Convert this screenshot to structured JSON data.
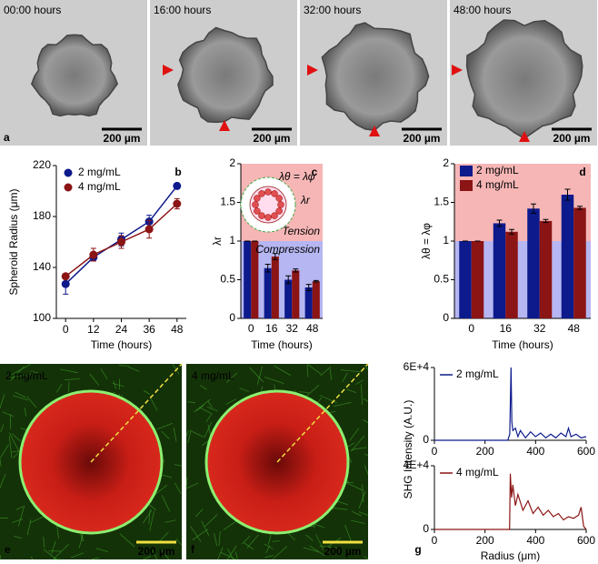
{
  "images": {
    "timelapse": [
      {
        "time": "00:00 hours",
        "scale": "200 µm"
      },
      {
        "time": "16:00 hours",
        "scale": "200 µm"
      },
      {
        "time": "32:00 hours",
        "scale": "200 µm"
      },
      {
        "time": "48:00 hours",
        "scale": "200 µm"
      }
    ],
    "timelapse_panel": "a",
    "fluorescence": [
      {
        "label": "2 mg/mL",
        "scale": "200 µm",
        "panel": "e"
      },
      {
        "label": "4 mg/mL",
        "scale": "200 µm",
        "panel": "f"
      }
    ]
  },
  "chart_data": [
    {
      "type": "line",
      "panel_label": "b",
      "xlabel": "Time (hours)",
      "ylabel": "Spheroid Radius (μm)",
      "x": [
        0,
        12,
        24,
        36,
        48
      ],
      "xlim": [
        -4,
        52
      ],
      "xticks": [
        0,
        12,
        24,
        36,
        48
      ],
      "ylim": [
        100,
        220
      ],
      "yticks": [
        100,
        140,
        180,
        220
      ],
      "legend": "upper left",
      "markers": true,
      "series": [
        {
          "name": "2 mg/mL",
          "color": "#0d1a8c",
          "values": [
            127,
            148,
            162,
            176,
            204
          ],
          "error": [
            8,
            3,
            5,
            5,
            1
          ]
        },
        {
          "name": "4 mg/mL",
          "color": "#8b1414",
          "values": [
            133,
            150,
            160,
            170,
            190
          ],
          "error": [
            2,
            5,
            5,
            7,
            4
          ]
        }
      ]
    },
    {
      "type": "bar",
      "panel_label": "c",
      "xlabel": "Time (hours)",
      "ylabel": "λr",
      "categories": [
        "0",
        "16",
        "32",
        "48"
      ],
      "ylim": [
        0,
        2
      ],
      "yticks": [
        0,
        0.5,
        1,
        1.5,
        2
      ],
      "regions": [
        {
          "from": 1,
          "to": 2,
          "color": "#f6b6b6"
        },
        {
          "from": 0,
          "to": 1,
          "color": "#b6b6f2"
        }
      ],
      "annotations": [
        "Tension",
        "Compression"
      ],
      "inset": [
        "λθ = λφ",
        "λr"
      ],
      "series": [
        {
          "name": "2 mg/mL",
          "color": "#0d1a8c",
          "values": [
            1,
            0.65,
            0.5,
            0.4
          ],
          "error": [
            0,
            0.05,
            0.05,
            0.04
          ]
        },
        {
          "name": "4 mg/mL",
          "color": "#8b1414",
          "values": [
            1,
            0.8,
            0.62,
            0.48
          ],
          "error": [
            0,
            0.04,
            0.02,
            0.01
          ]
        }
      ]
    },
    {
      "type": "bar",
      "panel_label": "d",
      "xlabel": "Time (hours)",
      "ylabel": "λθ = λφ",
      "categories": [
        "0",
        "16",
        "32",
        "48"
      ],
      "ylim": [
        0,
        2
      ],
      "yticks": [
        0,
        0.5,
        1,
        1.5,
        2
      ],
      "legend": "upper left",
      "regions": [
        {
          "from": 1,
          "to": 2,
          "color": "#f6b6b6"
        },
        {
          "from": 0,
          "to": 1,
          "color": "#b6b6f2"
        }
      ],
      "series": [
        {
          "name": "2 mg/mL",
          "color": "#0d1a8c",
          "values": [
            1,
            1.23,
            1.42,
            1.6
          ],
          "error": [
            0,
            0.04,
            0.06,
            0.07
          ]
        },
        {
          "name": "4 mg/mL",
          "color": "#8b1414",
          "values": [
            1,
            1.12,
            1.26,
            1.43
          ],
          "error": [
            0,
            0.03,
            0.02,
            0.02
          ]
        }
      ]
    },
    {
      "type": "line",
      "ylabel": "SHG Intensity (A.U.)",
      "markers": false,
      "legend": "upper left",
      "x": [
        0,
        290,
        298,
        303,
        306,
        310,
        320,
        330,
        340,
        360,
        380,
        400,
        420,
        440,
        460,
        480,
        500,
        520,
        530,
        540,
        560,
        580,
        600
      ],
      "xlim": [
        0,
        600
      ],
      "xticks": [
        0,
        200,
        400,
        600
      ],
      "ylim": [
        0,
        60000
      ],
      "yticks": [
        0,
        {
          "value": 60000,
          "label": "6E+4"
        }
      ],
      "series": [
        {
          "name": "2 mg/mL",
          "color": "#0d1a8c",
          "values": [
            0,
            0,
            5000,
            60000,
            15000,
            8000,
            10000,
            3000,
            8000,
            2000,
            7000,
            3000,
            6000,
            2000,
            5000,
            2000,
            6000,
            3000,
            10000,
            3000,
            5000,
            2000,
            3000
          ]
        }
      ]
    },
    {
      "type": "line",
      "panel_label": "g",
      "xlabel": "Radius (μm)",
      "markers": false,
      "legend": "upper left",
      "x": [
        0,
        290,
        297,
        300,
        305,
        310,
        320,
        330,
        350,
        370,
        390,
        410,
        430,
        450,
        470,
        490,
        510,
        530,
        550,
        570,
        580,
        590,
        600
      ],
      "xlim": [
        0,
        600
      ],
      "xticks": [
        0,
        200,
        400,
        600
      ],
      "ylim": [
        0,
        40000
      ],
      "yticks": [
        0,
        {
          "value": 40000,
          "label": "4E+4"
        }
      ],
      "series": [
        {
          "name": "4 mg/mL",
          "color": "#8b1414",
          "values": [
            0,
            0,
            0,
            35000,
            20000,
            28000,
            15000,
            22000,
            12000,
            18000,
            10000,
            14000,
            9000,
            12000,
            8000,
            10000,
            6000,
            8000,
            7000,
            9000,
            14000,
            2000,
            0
          ]
        }
      ]
    }
  ]
}
